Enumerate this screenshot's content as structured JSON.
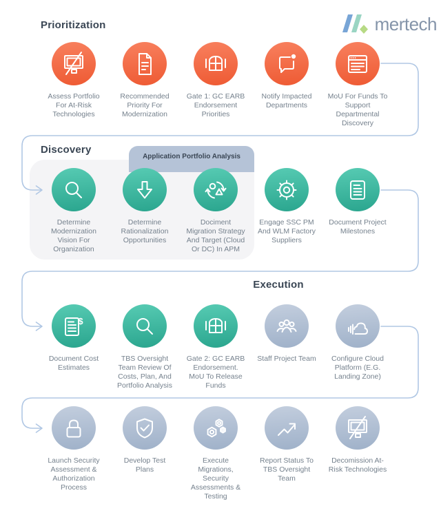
{
  "logo": {
    "text": "mertech"
  },
  "tag_label": "Application Portfolio Analysis",
  "colors": {
    "orange": "#ee5a33",
    "orange_light": "#f8805e",
    "teal": "#2aa58e",
    "teal_light": "#57cbb3",
    "gray": "#9fb1c9",
    "gray_light": "#c3cede",
    "connector": "#b0c7e4",
    "panel_bg": "#f4f4f6",
    "tag_bg": "#b5c3d7",
    "heading_text": "#3a4654",
    "label_text": "#75818d",
    "logo_blue": "#78a5d6",
    "logo_mint": "#9ad5c3",
    "logo_green": "#b7da85",
    "logo_text": "#8494a9"
  },
  "rows": [
    {
      "heading": "Prioritization",
      "items": [
        {
          "icon": "monitor-slash-icon",
          "color": "orange",
          "label": "Assess Portfolio\nFor At-Risk\nTechnologies"
        },
        {
          "icon": "document-fold-icon",
          "color": "orange",
          "label": "Recommended\nPriority For\nModernization"
        },
        {
          "icon": "gate-icon",
          "color": "orange",
          "label": "Gate 1: GC EARB\nEndorsement\nPriorities"
        },
        {
          "icon": "chat-alert-icon",
          "color": "orange",
          "label": "Notify Impacted\nDepartments"
        },
        {
          "icon": "browser-lines-icon",
          "color": "orange",
          "label": "MoU For Funds To\nSupport\nDepartmental\nDiscovery"
        }
      ]
    },
    {
      "heading": "Discovery",
      "items": [
        {
          "icon": "magnifier-icon",
          "color": "teal",
          "label": "Determine\nModernization\nVision For\nOrganization"
        },
        {
          "icon": "arrow-down-icon",
          "color": "teal",
          "label": "Determine\nRationalization\nOpportunities"
        },
        {
          "icon": "migration-cycle-icon",
          "color": "teal",
          "label": "Dociment\nMigration Strategy\nAnd Target (Cloud\nOr DC) In APM"
        },
        {
          "icon": "gear-icon",
          "color": "teal",
          "label": "Engage SSC PM\nAnd WLM Factory\nSuppliers"
        },
        {
          "icon": "document-lines-icon",
          "color": "teal",
          "label": "Document Project\nMilestones"
        }
      ]
    },
    {
      "heading": "Execution",
      "items": [
        {
          "icon": "document-dollar-icon",
          "color": "teal",
          "label": "Document Cost\nEstimates"
        },
        {
          "icon": "magnifier-icon",
          "color": "teal",
          "label": "TBS Oversight\nTeam Review Of\nCosts, Plan, And\nPortfolio Analysis"
        },
        {
          "icon": "gate-icon",
          "color": "teal",
          "label": "Gate 2: GC EARB\nEndorsement.\nMoU To Release\nFunds"
        },
        {
          "icon": "people-icon",
          "color": "gray",
          "label": "Staff Project Team"
        },
        {
          "icon": "cloud-signal-icon",
          "color": "gray",
          "label": "Configure Cloud\nPlatform (E.G.\nLanding Zone)"
        }
      ]
    },
    {
      "heading": "",
      "items": [
        {
          "icon": "lock-icon",
          "color": "gray",
          "label": "Launch Security\nAssessment &\nAuthorization\nProcess"
        },
        {
          "icon": "shield-check-icon",
          "color": "gray",
          "label": "Develop Test\nPlans"
        },
        {
          "icon": "hex-nuts-icon",
          "color": "gray",
          "label": "Execute\nMigrations,\nSecurity\nAssessments &\nTesting"
        },
        {
          "icon": "trend-up-icon",
          "color": "gray",
          "label": "Report Status To\nTBS Oversight\nTeam"
        },
        {
          "icon": "monitor-slash-icon",
          "color": "gray",
          "label": "Decomission At-\nRisk Technologies"
        }
      ]
    }
  ]
}
